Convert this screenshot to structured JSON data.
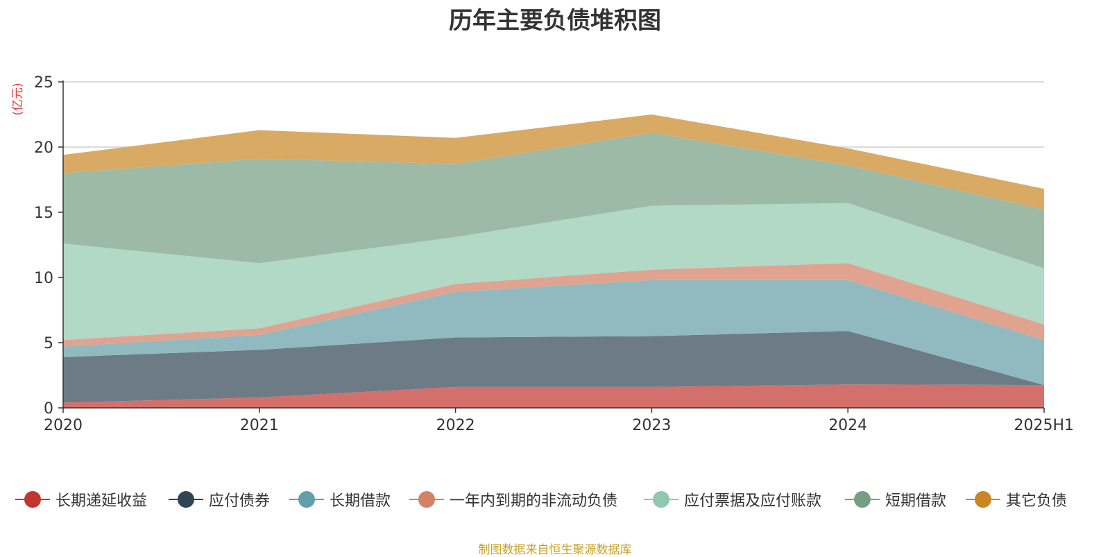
{
  "chart_data": {
    "type": "area",
    "stacked": true,
    "title": "历年主要负债堆积图",
    "ylabel": "(亿元)",
    "categories": [
      "2020",
      "2021",
      "2022",
      "2023",
      "2024",
      "2025H1"
    ],
    "ylim": [
      0,
      25
    ],
    "yticks": [
      0,
      5,
      10,
      15,
      20,
      25
    ],
    "grid": true,
    "legend_position": "bottom",
    "series": [
      {
        "name": "长期递延收益",
        "values": [
          0.4,
          0.8,
          1.6,
          1.6,
          1.8,
          1.75
        ],
        "color": "#c23531",
        "fill": "#d4706c"
      },
      {
        "name": "应付债券",
        "values": [
          3.5,
          3.65,
          3.8,
          3.9,
          4.1,
          0.0
        ],
        "color": "#2f4554",
        "fill": "#6d7b87"
      },
      {
        "name": "长期借款",
        "values": [
          0.8,
          1.15,
          3.5,
          4.3,
          3.9,
          3.45
        ],
        "color": "#61a0a8",
        "fill": "#90bac0"
      },
      {
        "name": "一年内到期的非流动负债",
        "values": [
          0.5,
          0.5,
          0.6,
          0.8,
          1.3,
          1.2
        ],
        "color": "#d48265",
        "fill": "#e0a390"
      },
      {
        "name": "应付票据及应付账款",
        "values": [
          7.4,
          5.0,
          3.6,
          4.9,
          4.6,
          4.3
        ],
        "color": "#91c7ae",
        "fill": "#b2d8c6"
      },
      {
        "name": "短期借款",
        "values": [
          5.4,
          8.0,
          5.6,
          5.6,
          2.9,
          4.5
        ],
        "color": "#749f83",
        "fill": "#9dbaa6"
      },
      {
        "name": "其它负债",
        "values": [
          1.4,
          2.2,
          2.0,
          1.4,
          1.3,
          1.6
        ],
        "color": "#ca8622",
        "fill": "#d9aa64"
      }
    ]
  },
  "source_text": "制图数据来自恒生聚源数据库"
}
